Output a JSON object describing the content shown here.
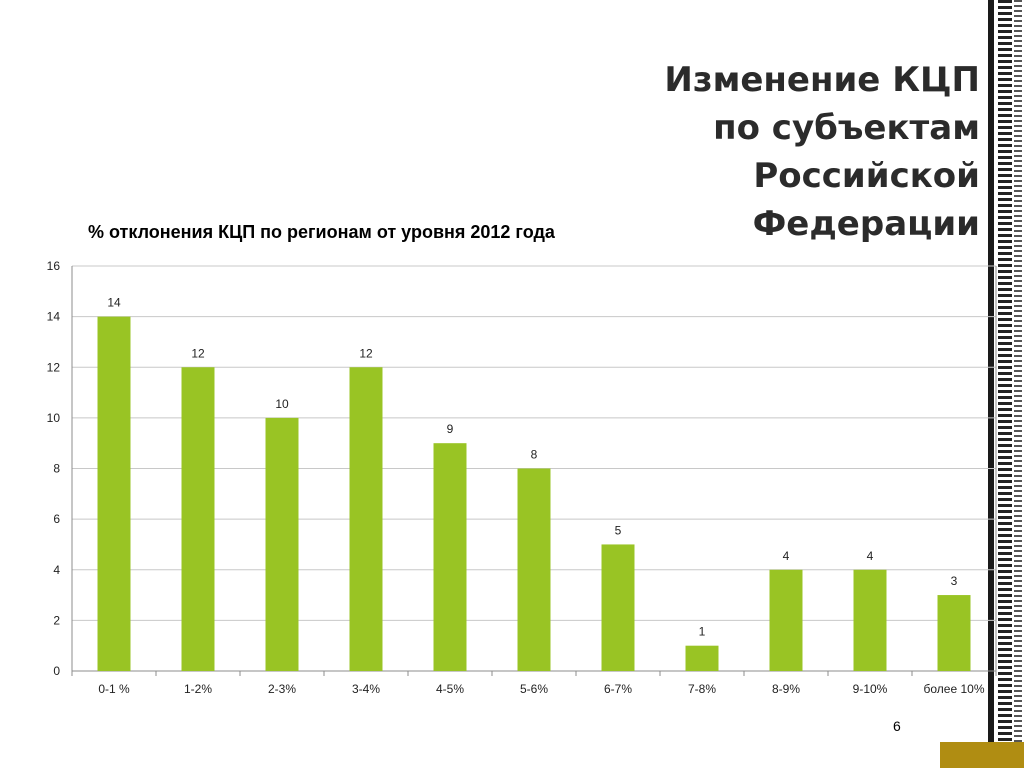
{
  "slide": {
    "title_lines": [
      "Изменение КЦП",
      "по субъектам",
      "Российской",
      "Федерации"
    ],
    "page_number": "6",
    "accent_color": "#b08d12"
  },
  "chart_data": {
    "type": "bar",
    "title": "% отклонения КЦП по регионам от уровня 2012 года",
    "categories": [
      "0-1 %",
      "1-2%",
      "2-3%",
      "3-4%",
      "4-5%",
      "5-6%",
      "6-7%",
      "7-8%",
      "8-9%",
      "9-10%",
      "более 10%"
    ],
    "values": [
      14,
      12,
      10,
      12,
      9,
      8,
      5,
      1,
      4,
      4,
      3
    ],
    "ylim": [
      0,
      16
    ],
    "yticks": [
      0,
      2,
      4,
      6,
      8,
      10,
      12,
      14,
      16
    ],
    "grid": true,
    "bar_color": "#99c424",
    "data_labels": true,
    "legend": "none"
  }
}
